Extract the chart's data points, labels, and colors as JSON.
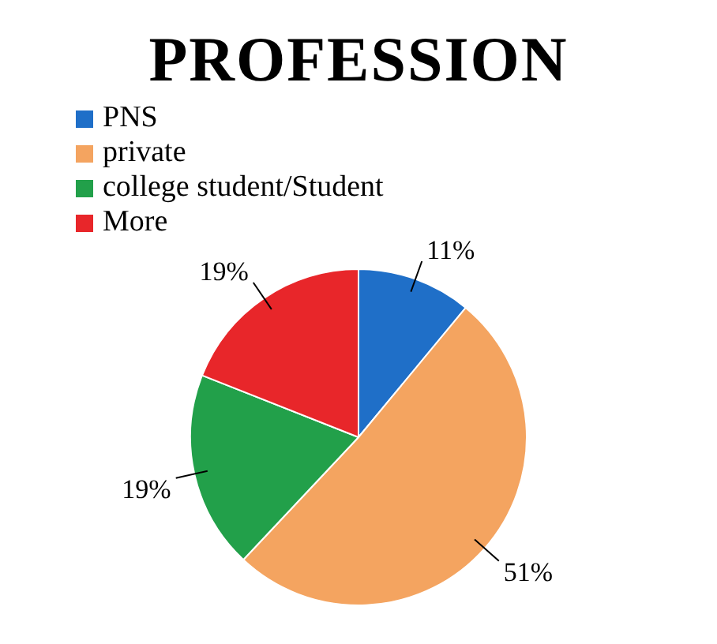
{
  "chart_data": {
    "type": "pie",
    "title": "PROFESSION",
    "categories": [
      "PNS",
      "private",
      "college student/Student",
      "More"
    ],
    "values": [
      11,
      51,
      19,
      19
    ],
    "colors": [
      "#1f6fc8",
      "#f4a460",
      "#22a04a",
      "#e8262a"
    ],
    "value_labels": [
      "11%",
      "51%",
      "19%",
      "19%"
    ],
    "legend": "top left"
  }
}
